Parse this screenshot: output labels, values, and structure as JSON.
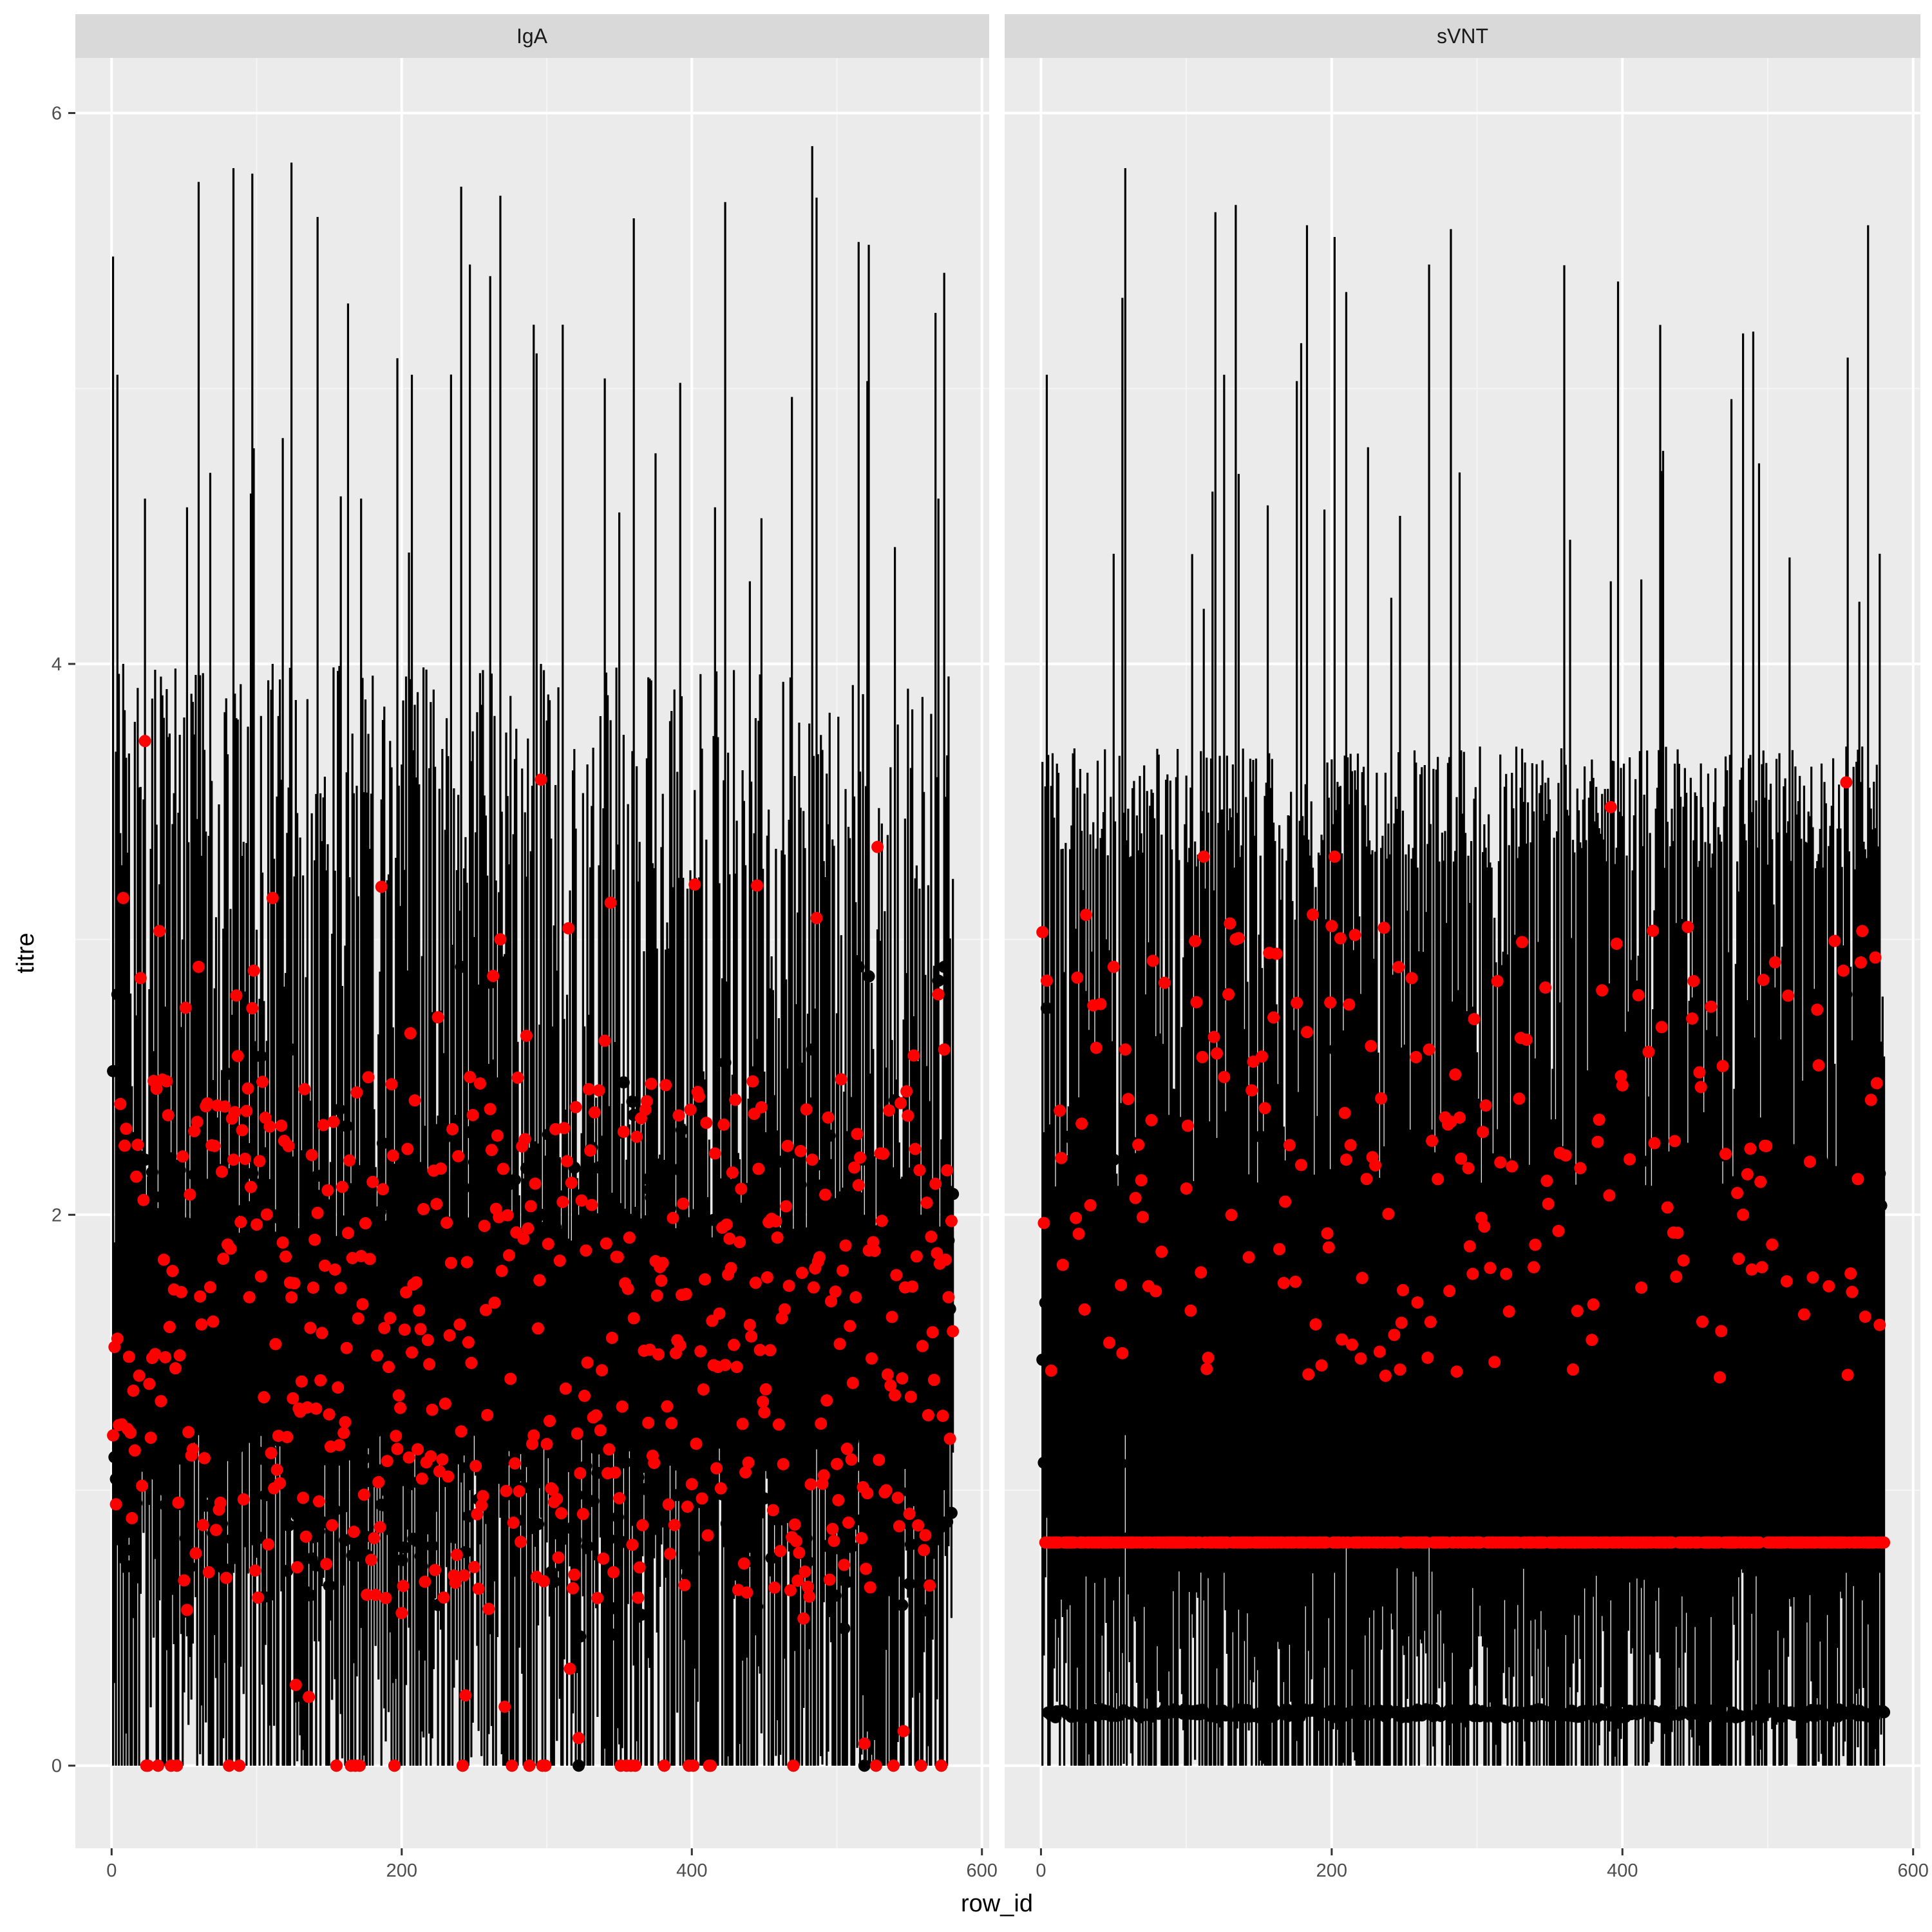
{
  "chart_data": {
    "type": "scatter",
    "xlabel": "row_id",
    "ylabel": "titre",
    "xlim": [
      -25,
      605
    ],
    "ylim": [
      -0.3,
      6.2
    ],
    "x_ticks": [
      0,
      200,
      400,
      600
    ],
    "x_tick_labels": [
      "0",
      "200",
      "400",
      "600"
    ],
    "y_ticks": [
      0,
      2,
      4,
      6
    ],
    "y_tick_labels": [
      "0",
      "2",
      "4",
      "6"
    ],
    "grid": true,
    "legend": "none",
    "n_rows": 580,
    "panels": [
      {
        "name": "IgA",
        "series": [
          {
            "role": "interval",
            "color": "#000000",
            "summary": "vertical error bars, one per row_id; lower bound mostly 0 to ~1.2, upper bound mostly 2.2 to 4.0, peaks near 5.8"
          },
          {
            "role": "estimate",
            "color": "#000000",
            "summary": "black point per row_id, mostly between 0.5 and 2.5"
          },
          {
            "role": "observed",
            "color": "#ff0000",
            "summary": "red point per row_id, mostly between 0.6 and 2.5, a few up to ~3.6 and some at 0"
          }
        ],
        "sample_points": [
          {
            "row_id": 2,
            "lower": 0.3,
            "upper": 1.9,
            "black": 1.12,
            "red": 1.52
          },
          {
            "row_id": 4,
            "lower": 0.8,
            "upper": 5.05,
            "black": 2.8,
            "red": 1.55
          },
          {
            "row_id": 8,
            "lower": 0.7,
            "upper": 4.0,
            "black": 2.15,
            "red": 3.15
          },
          {
            "row_id": 23,
            "lower": 1.0,
            "upper": 4.6,
            "black": 2.2,
            "red": 3.72
          },
          {
            "row_id": 33,
            "lower": 0.6,
            "upper": 3.2,
            "black": 1.85,
            "red": 3.03
          },
          {
            "row_id": 45,
            "lower": 0.0,
            "upper": 2.2,
            "black": 0.0,
            "red": 0.0
          },
          {
            "row_id": 60,
            "lower": 1.2,
            "upper": 5.75,
            "black": 2.2,
            "red": 2.9
          },
          {
            "row_id": 84,
            "lower": 0.7,
            "upper": 5.8,
            "black": 2.2,
            "red": 2.2
          },
          {
            "row_id": 97,
            "lower": 0.8,
            "upper": 5.78,
            "black": 2.15,
            "red": 2.75
          },
          {
            "row_id": 111,
            "lower": 0.6,
            "upper": 4.0,
            "black": 2.0,
            "red": 3.15
          },
          {
            "row_id": 124,
            "lower": 0.9,
            "upper": 5.82,
            "black": 2.6,
            "red": 1.7
          },
          {
            "row_id": 168,
            "lower": 0.0,
            "upper": 2.2,
            "black": 0.0,
            "red": 0.0
          },
          {
            "row_id": 172,
            "lower": 0.5,
            "upper": 4.6,
            "black": 2.1,
            "red": 1.85
          },
          {
            "row_id": 207,
            "lower": 1.0,
            "upper": 5.05,
            "black": 2.3,
            "red": 1.5
          },
          {
            "row_id": 247,
            "lower": 1.0,
            "upper": 5.45,
            "black": 2.3,
            "red": 2.5
          },
          {
            "row_id": 268,
            "lower": 0.9,
            "upper": 5.7,
            "black": 2.2,
            "red": 3.0
          },
          {
            "row_id": 296,
            "lower": 0.9,
            "upper": 4.0,
            "black": 2.0,
            "red": 3.58
          },
          {
            "row_id": 322,
            "lower": 0.0,
            "upper": 2.0,
            "black": 0.0,
            "red": 0.1
          },
          {
            "row_id": 355,
            "lower": 0.0,
            "upper": 2.2,
            "black": 0.0,
            "red": 0.0
          },
          {
            "row_id": 413,
            "lower": 0.0,
            "upper": 2.0,
            "black": 0.0,
            "red": 0.0
          },
          {
            "row_id": 440,
            "lower": 0.8,
            "upper": 4.3,
            "black": 2.0,
            "red": 1.6
          },
          {
            "row_id": 483,
            "lower": 1.0,
            "upper": 5.88,
            "black": 2.6,
            "red": 2.2
          },
          {
            "row_id": 519,
            "lower": 0.0,
            "upper": 2.0,
            "black": 0.0,
            "red": 0.08
          },
          {
            "row_id": 558,
            "lower": 0.0,
            "upper": 2.0,
            "black": 0.0,
            "red": 0.0
          },
          {
            "row_id": 570,
            "lower": 0.8,
            "upper": 4.6,
            "black": 2.85,
            "red": 2.8
          },
          {
            "row_id": 574,
            "lower": 1.0,
            "upper": 5.42,
            "black": 2.9,
            "red": 2.6
          }
        ]
      },
      {
        "name": "sVNT",
        "series": [
          {
            "role": "interval",
            "color": "#000000",
            "summary": "vertical error bars; lower bound mostly 0 to ~0.7, upper bound mostly 3.2 to 3.7, peaks near 5.8"
          },
          {
            "role": "estimate",
            "color": "#000000",
            "summary": "black points mostly at ~0.19, others between 0.8 and 2.3"
          },
          {
            "role": "observed",
            "color": "#ff0000",
            "summary": "red points mostly at a constant ~0.81, others between 1.4 and 3.5"
          }
        ],
        "red_constant": 0.81,
        "black_floor": 0.19,
        "sample_points": [
          {
            "row_id": 2,
            "lower": 0.4,
            "upper": 2.3,
            "black": 1.1,
            "red": 1.97
          },
          {
            "row_id": 4,
            "lower": 0.9,
            "upper": 5.05,
            "black": 2.75,
            "red": 2.85
          },
          {
            "row_id": 50,
            "lower": 0.6,
            "upper": 4.4,
            "black": 2.2,
            "red": 2.9
          },
          {
            "row_id": 58,
            "lower": 1.2,
            "upper": 5.8,
            "black": 2.25,
            "red": 2.6
          },
          {
            "row_id": 112,
            "lower": 0.6,
            "upper": 4.2,
            "black": 0.19,
            "red": 3.3
          },
          {
            "row_id": 126,
            "lower": 0.7,
            "upper": 5.05,
            "black": 2.8,
            "red": 2.5
          },
          {
            "row_id": 202,
            "lower": 0.7,
            "upper": 5.55,
            "black": 2.6,
            "red": 3.3
          },
          {
            "row_id": 210,
            "lower": 0.8,
            "upper": 5.35,
            "black": 2.1,
            "red": 2.2
          },
          {
            "row_id": 267,
            "lower": 0.8,
            "upper": 5.45,
            "black": 2.1,
            "red": 2.6
          },
          {
            "row_id": 392,
            "lower": 0.6,
            "upper": 4.3,
            "black": 0.9,
            "red": 3.48
          },
          {
            "row_id": 483,
            "lower": 0.7,
            "upper": 5.2,
            "black": 2.6,
            "red": 2.0
          },
          {
            "row_id": 554,
            "lower": 0.7,
            "upper": 3.7,
            "black": 2.8,
            "red": 3.57
          },
          {
            "row_id": 565,
            "lower": 0.6,
            "upper": 3.7,
            "black": 1.6,
            "red": 3.03
          },
          {
            "row_id": 577,
            "lower": 0.7,
            "upper": 4.4,
            "black": 2.15,
            "red": 1.6
          }
        ]
      }
    ]
  }
}
